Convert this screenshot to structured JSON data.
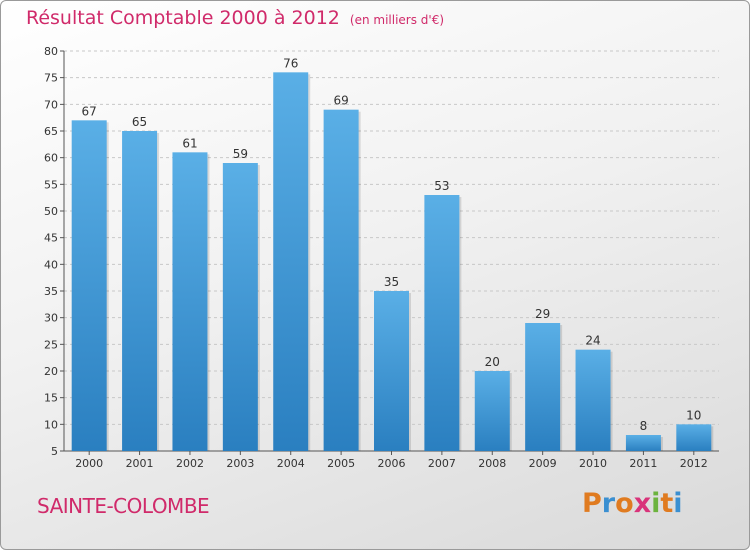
{
  "chart_data": {
    "type": "bar",
    "title": "Résultat Comptable 2000 à 2012",
    "subtitle": "(en milliers d'€)",
    "categories": [
      "2000",
      "2001",
      "2002",
      "2003",
      "2004",
      "2005",
      "2006",
      "2007",
      "2008",
      "2009",
      "2010",
      "2011",
      "2012"
    ],
    "values": [
      67,
      65,
      61,
      59,
      76,
      69,
      35,
      53,
      20,
      29,
      24,
      8,
      10
    ],
    "ylim": [
      5,
      80
    ],
    "yticks": [
      5,
      10,
      15,
      20,
      25,
      30,
      35,
      40,
      45,
      50,
      55,
      60,
      65,
      70,
      75,
      80
    ],
    "grid": true,
    "xlabel": "",
    "ylabel": ""
  },
  "commune": "SAINTE-COLOMBE",
  "brand": {
    "letters": [
      "P",
      "r",
      "o",
      "x",
      "i",
      "t",
      "i"
    ],
    "colors": [
      "#e07b20",
      "#3a8fd1",
      "#e07b20",
      "#d9337a",
      "#6cb33e",
      "#e07b20",
      "#3a8fd1"
    ]
  },
  "colors": {
    "bar_top": "#5aafe6",
    "bar_bottom": "#2a7fc0",
    "title": "#d02a6a"
  }
}
